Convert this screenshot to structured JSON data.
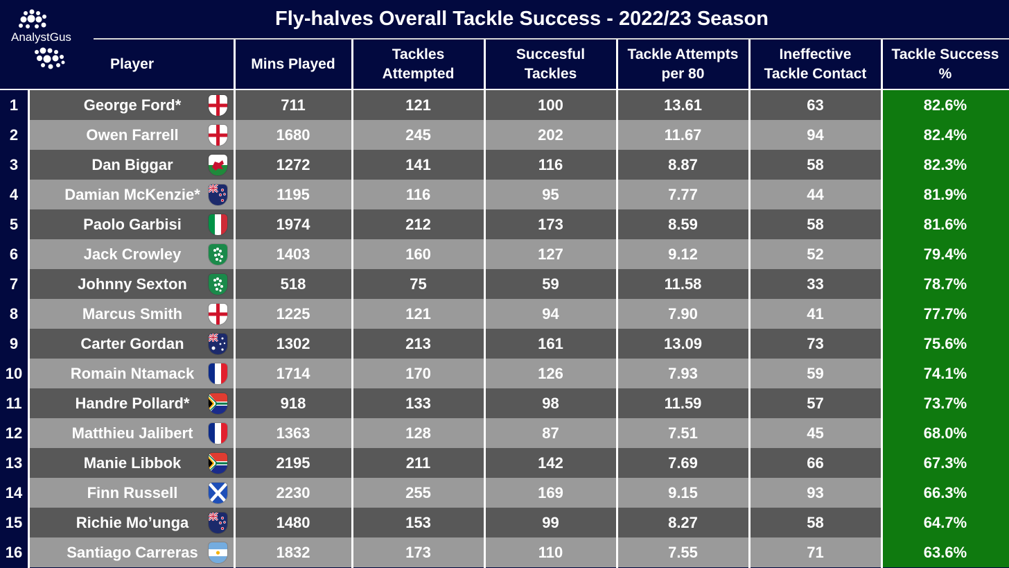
{
  "title": "Fly-halves Overall Tackle Success - 2022/23 Season",
  "brand": "AnalystGus",
  "colors": {
    "background": "#02093f",
    "row_dark": "#585858",
    "row_light": "#9a9a9a",
    "success_green": "#0f7a0f",
    "text": "#ffffff"
  },
  "chart_data": {
    "type": "table",
    "title": "Fly-halves Overall Tackle Success - 2022/23 Season",
    "columns": [
      "Player",
      "Mins Played",
      "Tackles Attempted",
      "Succesful Tackles",
      "Tackle Attempts per 80",
      "Ineffective Tackle Contact",
      "Tackle Success %"
    ],
    "header_lines": [
      [
        "Player"
      ],
      [
        "Mins Played"
      ],
      [
        "Tackles",
        "Attempted"
      ],
      [
        "Succesful",
        "Tackles"
      ],
      [
        "Tackle Attempts",
        "per 80"
      ],
      [
        "Ineffective",
        "Tackle Contact"
      ],
      [
        "Tackle Success",
        "%"
      ]
    ],
    "rows": [
      {
        "rank": "1",
        "player": "George Ford*",
        "flag": "england-flag-icon",
        "mins": "711",
        "attempted": "121",
        "successful": "100",
        "per80": "13.61",
        "ineffective": "63",
        "success_pct": "82.6%"
      },
      {
        "rank": "2",
        "player": "Owen Farrell",
        "flag": "england-flag-icon",
        "mins": "1680",
        "attempted": "245",
        "successful": "202",
        "per80": "11.67",
        "ineffective": "94",
        "success_pct": "82.4%"
      },
      {
        "rank": "3",
        "player": "Dan Biggar",
        "flag": "wales-flag-icon",
        "mins": "1272",
        "attempted": "141",
        "successful": "116",
        "per80": "8.87",
        "ineffective": "58",
        "success_pct": "82.3%"
      },
      {
        "rank": "4",
        "player": "Damian McKenzie*",
        "flag": "new-zealand-flag-icon",
        "mins": "1195",
        "attempted": "116",
        "successful": "95",
        "per80": "7.77",
        "ineffective": "44",
        "success_pct": "81.9%"
      },
      {
        "rank": "5",
        "player": "Paolo Garbisi",
        "flag": "italy-flag-icon",
        "mins": "1974",
        "attempted": "212",
        "successful": "173",
        "per80": "8.59",
        "ineffective": "58",
        "success_pct": "81.6%"
      },
      {
        "rank": "6",
        "player": "Jack Crowley",
        "flag": "ireland-flag-icon",
        "mins": "1403",
        "attempted": "160",
        "successful": "127",
        "per80": "9.12",
        "ineffective": "52",
        "success_pct": "79.4%"
      },
      {
        "rank": "7",
        "player": "Johnny Sexton",
        "flag": "ireland-flag-icon",
        "mins": "518",
        "attempted": "75",
        "successful": "59",
        "per80": "11.58",
        "ineffective": "33",
        "success_pct": "78.7%"
      },
      {
        "rank": "8",
        "player": "Marcus Smith",
        "flag": "england-flag-icon",
        "mins": "1225",
        "attempted": "121",
        "successful": "94",
        "per80": "7.90",
        "ineffective": "41",
        "success_pct": "77.7%"
      },
      {
        "rank": "9",
        "player": "Carter Gordan",
        "flag": "australia-flag-icon",
        "mins": "1302",
        "attempted": "213",
        "successful": "161",
        "per80": "13.09",
        "ineffective": "73",
        "success_pct": "75.6%"
      },
      {
        "rank": "10",
        "player": "Romain Ntamack",
        "flag": "france-flag-icon",
        "mins": "1714",
        "attempted": "170",
        "successful": "126",
        "per80": "7.93",
        "ineffective": "59",
        "success_pct": "74.1%"
      },
      {
        "rank": "11",
        "player": "Handre Pollard*",
        "flag": "south-africa-flag-icon",
        "mins": "918",
        "attempted": "133",
        "successful": "98",
        "per80": "11.59",
        "ineffective": "57",
        "success_pct": "73.7%"
      },
      {
        "rank": "12",
        "player": "Matthieu Jalibert",
        "flag": "france-flag-icon",
        "mins": "1363",
        "attempted": "128",
        "successful": "87",
        "per80": "7.51",
        "ineffective": "45",
        "success_pct": "68.0%"
      },
      {
        "rank": "13",
        "player": "Manie Libbok",
        "flag": "south-africa-flag-icon",
        "mins": "2195",
        "attempted": "211",
        "successful": "142",
        "per80": "7.69",
        "ineffective": "66",
        "success_pct": "67.3%"
      },
      {
        "rank": "14",
        "player": "Finn Russell",
        "flag": "scotland-flag-icon",
        "mins": "2230",
        "attempted": "255",
        "successful": "169",
        "per80": "9.15",
        "ineffective": "93",
        "success_pct": "66.3%"
      },
      {
        "rank": "15",
        "player": "Richie Mo’unga",
        "flag": "new-zealand-flag-icon",
        "mins": "1480",
        "attempted": "153",
        "successful": "99",
        "per80": "8.27",
        "ineffective": "58",
        "success_pct": "64.7%"
      },
      {
        "rank": "16",
        "player": "Santiago Carreras",
        "flag": "argentina-flag-icon",
        "mins": "1832",
        "attempted": "173",
        "successful": "110",
        "per80": "7.55",
        "ineffective": "71",
        "success_pct": "63.6%"
      }
    ]
  }
}
